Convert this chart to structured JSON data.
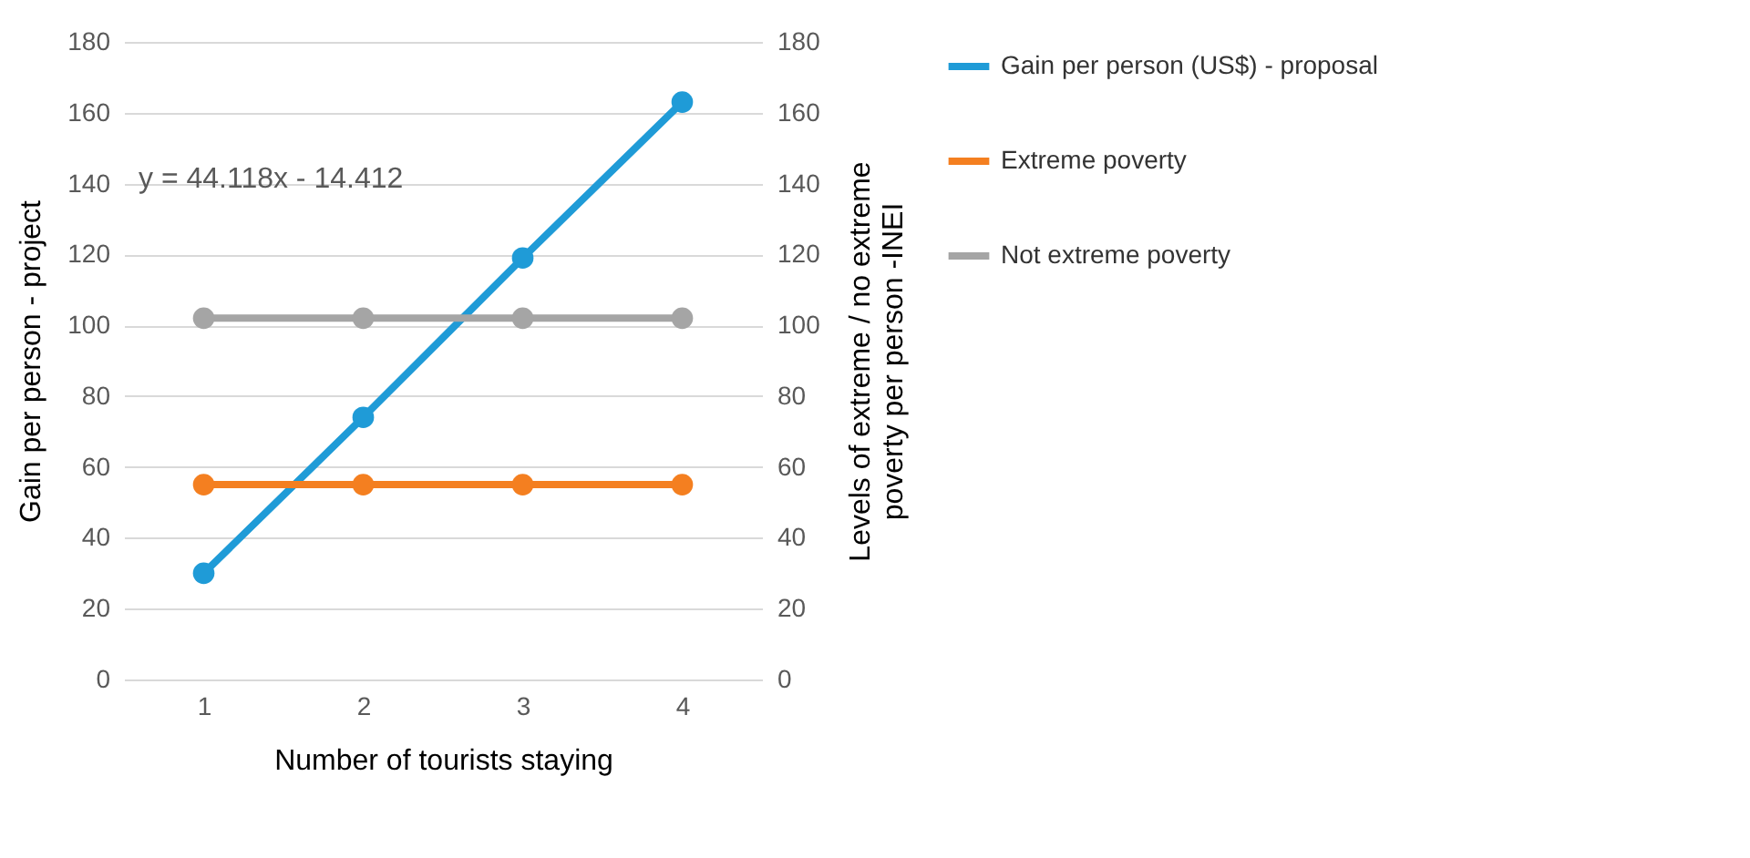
{
  "chart_data": {
    "type": "line",
    "xlabel": "Number of tourists staying",
    "ylabel": "Gain per person - project",
    "y2label": "Levels of extreme / no extreme poverty per person -INEI",
    "categories": [
      "1",
      "2",
      "3",
      "4"
    ],
    "series": [
      {
        "name": "Gain per person (US$) - proposal",
        "color": "#1f9bd7",
        "values": [
          30,
          74,
          119,
          163
        ]
      },
      {
        "name": "Extreme poverty",
        "color": "#f47f20",
        "values": [
          55,
          55,
          55,
          55
        ],
        "axis": "y2"
      },
      {
        "name": "Not extreme poverty",
        "color": "#a5a5a5",
        "values": [
          102,
          102,
          102,
          102
        ],
        "axis": "y2"
      }
    ],
    "ylim": [
      0,
      180
    ],
    "yticks": [
      0,
      20,
      40,
      60,
      80,
      100,
      120,
      140,
      160,
      180
    ],
    "y2lim": [
      0,
      180
    ],
    "y2ticks": [
      0,
      20,
      40,
      60,
      80,
      100,
      120,
      140,
      160,
      180
    ],
    "annotations": [
      "y = 44.118x - 14.412"
    ],
    "grid": "y",
    "legend": "right",
    "marker": "circle",
    "line_style": "solid"
  }
}
